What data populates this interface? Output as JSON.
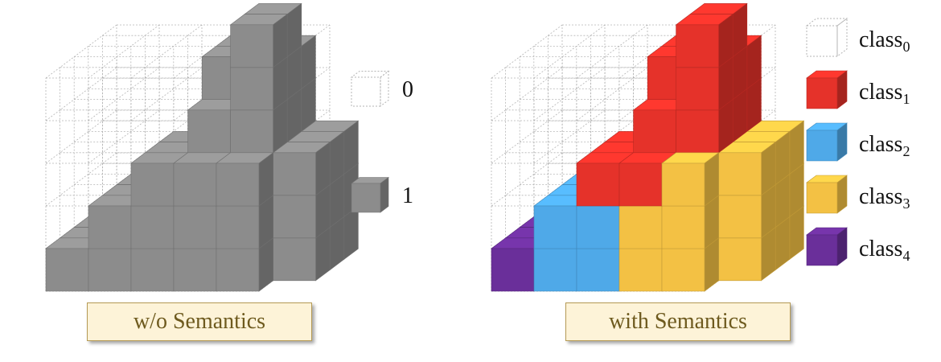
{
  "left_panel": {
    "caption": "w/o Semantics",
    "legend": [
      {
        "label": "0",
        "fill": "none"
      },
      {
        "label": "1",
        "fill": "#8c8c8c"
      }
    ]
  },
  "right_panel": {
    "caption": "with Semantics",
    "legend": [
      {
        "base": "class",
        "sub": "0",
        "color": "#ffffff"
      },
      {
        "base": "class",
        "sub": "1",
        "color": "#e5322a"
      },
      {
        "base": "class",
        "sub": "2",
        "color": "#4fa9e8"
      },
      {
        "base": "class",
        "sub": "3",
        "color": "#f3c144"
      },
      {
        "base": "class",
        "sub": "4",
        "color": "#6a2f9a"
      }
    ]
  },
  "colors": {
    "gray": "#8c8c8c",
    "red": "#e5322a",
    "blue": "#4fa9e8",
    "yellow": "#f3c144",
    "purple": "#6a2f9a",
    "caption_bg": "#fdf3d8",
    "caption_border": "#b59a55",
    "caption_text": "#6e5a1e"
  }
}
